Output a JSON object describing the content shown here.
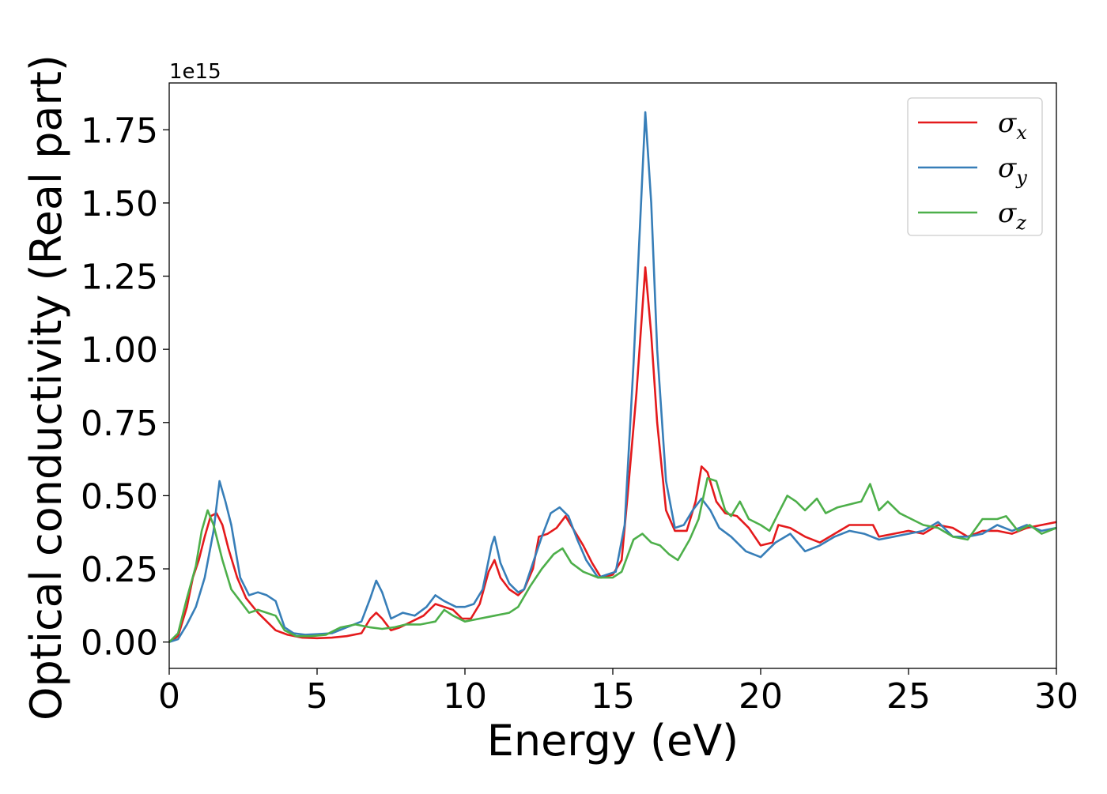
{
  "chart_data": {
    "type": "line",
    "title": "",
    "xlabel": "Energy (eV)",
    "ylabel": "Optical conductivity (Real part)",
    "offset_label": "1e15",
    "xlim": [
      0,
      30
    ],
    "ylim": [
      -0.09,
      1.91
    ],
    "x_ticks": [
      0,
      5,
      10,
      15,
      20,
      25,
      30
    ],
    "x_tick_labels": [
      "0",
      "5",
      "10",
      "15",
      "20",
      "25",
      "30"
    ],
    "y_ticks": [
      0.0,
      0.25,
      0.5,
      0.75,
      1.0,
      1.25,
      1.5,
      1.75
    ],
    "y_tick_labels": [
      "0.00",
      "0.25",
      "0.50",
      "0.75",
      "1.00",
      "1.25",
      "1.50",
      "1.75"
    ],
    "grid": false,
    "legend_position": "upper right",
    "series": [
      {
        "name": "σ_x",
        "color": "#e41a1c",
        "points": [
          [
            0,
            0
          ],
          [
            0.3,
            0.02
          ],
          [
            0.6,
            0.12
          ],
          [
            0.8,
            0.22
          ],
          [
            1.0,
            0.28
          ],
          [
            1.2,
            0.36
          ],
          [
            1.4,
            0.43
          ],
          [
            1.6,
            0.44
          ],
          [
            1.8,
            0.4
          ],
          [
            2.0,
            0.32
          ],
          [
            2.3,
            0.22
          ],
          [
            2.6,
            0.15
          ],
          [
            3.0,
            0.1
          ],
          [
            3.3,
            0.07
          ],
          [
            3.6,
            0.04
          ],
          [
            4.0,
            0.025
          ],
          [
            4.5,
            0.015
          ],
          [
            5.0,
            0.013
          ],
          [
            5.5,
            0.015
          ],
          [
            6.0,
            0.02
          ],
          [
            6.5,
            0.03
          ],
          [
            6.8,
            0.08
          ],
          [
            7.0,
            0.1
          ],
          [
            7.2,
            0.08
          ],
          [
            7.5,
            0.04
          ],
          [
            7.8,
            0.05
          ],
          [
            8.2,
            0.07
          ],
          [
            8.6,
            0.09
          ],
          [
            9.0,
            0.13
          ],
          [
            9.3,
            0.12
          ],
          [
            9.6,
            0.11
          ],
          [
            9.9,
            0.08
          ],
          [
            10.2,
            0.08
          ],
          [
            10.5,
            0.13
          ],
          [
            10.8,
            0.24
          ],
          [
            11.0,
            0.28
          ],
          [
            11.2,
            0.22
          ],
          [
            11.5,
            0.18
          ],
          [
            11.8,
            0.16
          ],
          [
            12.0,
            0.18
          ],
          [
            12.3,
            0.25
          ],
          [
            12.5,
            0.36
          ],
          [
            12.8,
            0.37
          ],
          [
            13.1,
            0.39
          ],
          [
            13.4,
            0.43
          ],
          [
            13.7,
            0.38
          ],
          [
            14.0,
            0.33
          ],
          [
            14.3,
            0.27
          ],
          [
            14.6,
            0.22
          ],
          [
            15.0,
            0.23
          ],
          [
            15.3,
            0.28
          ],
          [
            15.5,
            0.5
          ],
          [
            15.8,
            0.85
          ],
          [
            16.1,
            1.28
          ],
          [
            16.3,
            1.05
          ],
          [
            16.5,
            0.75
          ],
          [
            16.8,
            0.45
          ],
          [
            17.1,
            0.38
          ],
          [
            17.5,
            0.38
          ],
          [
            17.8,
            0.48
          ],
          [
            18.0,
            0.6
          ],
          [
            18.2,
            0.58
          ],
          [
            18.5,
            0.48
          ],
          [
            18.8,
            0.44
          ],
          [
            19.2,
            0.43
          ],
          [
            19.6,
            0.39
          ],
          [
            20.0,
            0.33
          ],
          [
            20.4,
            0.34
          ],
          [
            20.6,
            0.4
          ],
          [
            21.0,
            0.39
          ],
          [
            21.5,
            0.36
          ],
          [
            22.0,
            0.34
          ],
          [
            22.5,
            0.37
          ],
          [
            23.0,
            0.4
          ],
          [
            23.5,
            0.4
          ],
          [
            23.8,
            0.4
          ],
          [
            24.0,
            0.36
          ],
          [
            24.5,
            0.37
          ],
          [
            25.0,
            0.38
          ],
          [
            25.5,
            0.37
          ],
          [
            26.0,
            0.4
          ],
          [
            26.5,
            0.39
          ],
          [
            27.0,
            0.36
          ],
          [
            27.5,
            0.38
          ],
          [
            28.0,
            0.38
          ],
          [
            28.5,
            0.37
          ],
          [
            29.0,
            0.39
          ],
          [
            29.5,
            0.4
          ],
          [
            30.0,
            0.41
          ]
        ]
      },
      {
        "name": "σ_y",
        "color": "#377eb8",
        "points": [
          [
            0,
            0
          ],
          [
            0.3,
            0.01
          ],
          [
            0.6,
            0.06
          ],
          [
            0.9,
            0.12
          ],
          [
            1.2,
            0.22
          ],
          [
            1.5,
            0.38
          ],
          [
            1.7,
            0.55
          ],
          [
            1.9,
            0.48
          ],
          [
            2.1,
            0.4
          ],
          [
            2.4,
            0.22
          ],
          [
            2.7,
            0.16
          ],
          [
            3.0,
            0.17
          ],
          [
            3.3,
            0.16
          ],
          [
            3.6,
            0.14
          ],
          [
            3.9,
            0.05
          ],
          [
            4.2,
            0.03
          ],
          [
            4.6,
            0.025
          ],
          [
            5.0,
            0.027
          ],
          [
            5.5,
            0.03
          ],
          [
            6.0,
            0.05
          ],
          [
            6.5,
            0.07
          ],
          [
            6.8,
            0.15
          ],
          [
            7.0,
            0.21
          ],
          [
            7.2,
            0.17
          ],
          [
            7.5,
            0.08
          ],
          [
            7.9,
            0.1
          ],
          [
            8.3,
            0.09
          ],
          [
            8.7,
            0.12
          ],
          [
            9.0,
            0.16
          ],
          [
            9.3,
            0.14
          ],
          [
            9.7,
            0.12
          ],
          [
            10.0,
            0.12
          ],
          [
            10.3,
            0.13
          ],
          [
            10.6,
            0.18
          ],
          [
            10.9,
            0.33
          ],
          [
            11.0,
            0.36
          ],
          [
            11.2,
            0.27
          ],
          [
            11.5,
            0.2
          ],
          [
            11.8,
            0.17
          ],
          [
            12.0,
            0.18
          ],
          [
            12.3,
            0.27
          ],
          [
            12.6,
            0.36
          ],
          [
            12.9,
            0.44
          ],
          [
            13.2,
            0.46
          ],
          [
            13.5,
            0.43
          ],
          [
            13.8,
            0.35
          ],
          [
            14.1,
            0.28
          ],
          [
            14.5,
            0.22
          ],
          [
            14.8,
            0.23
          ],
          [
            15.1,
            0.24
          ],
          [
            15.4,
            0.4
          ],
          [
            15.7,
            0.95
          ],
          [
            16.1,
            1.81
          ],
          [
            16.3,
            1.5
          ],
          [
            16.5,
            1.0
          ],
          [
            16.8,
            0.55
          ],
          [
            17.1,
            0.39
          ],
          [
            17.4,
            0.4
          ],
          [
            17.7,
            0.45
          ],
          [
            18.0,
            0.49
          ],
          [
            18.3,
            0.45
          ],
          [
            18.6,
            0.39
          ],
          [
            19.0,
            0.36
          ],
          [
            19.5,
            0.31
          ],
          [
            20.0,
            0.29
          ],
          [
            20.5,
            0.34
          ],
          [
            21.0,
            0.37
          ],
          [
            21.5,
            0.31
          ],
          [
            22.0,
            0.33
          ],
          [
            22.5,
            0.36
          ],
          [
            23.0,
            0.38
          ],
          [
            23.5,
            0.37
          ],
          [
            24.0,
            0.35
          ],
          [
            24.5,
            0.36
          ],
          [
            25.0,
            0.37
          ],
          [
            25.5,
            0.38
          ],
          [
            26.0,
            0.41
          ],
          [
            26.5,
            0.36
          ],
          [
            27.0,
            0.36
          ],
          [
            27.5,
            0.37
          ],
          [
            28.0,
            0.4
          ],
          [
            28.5,
            0.38
          ],
          [
            29.0,
            0.4
          ],
          [
            29.5,
            0.38
          ],
          [
            30.0,
            0.39
          ]
        ]
      },
      {
        "name": "σ_z",
        "color": "#4daf4a",
        "points": [
          [
            0,
            0
          ],
          [
            0.3,
            0.03
          ],
          [
            0.6,
            0.15
          ],
          [
            0.9,
            0.26
          ],
          [
            1.1,
            0.38
          ],
          [
            1.3,
            0.45
          ],
          [
            1.5,
            0.4
          ],
          [
            1.8,
            0.28
          ],
          [
            2.1,
            0.18
          ],
          [
            2.4,
            0.14
          ],
          [
            2.7,
            0.1
          ],
          [
            3.0,
            0.11
          ],
          [
            3.3,
            0.1
          ],
          [
            3.6,
            0.09
          ],
          [
            3.9,
            0.04
          ],
          [
            4.3,
            0.02
          ],
          [
            4.8,
            0.02
          ],
          [
            5.3,
            0.025
          ],
          [
            5.8,
            0.05
          ],
          [
            6.3,
            0.06
          ],
          [
            6.8,
            0.05
          ],
          [
            7.2,
            0.045
          ],
          [
            7.6,
            0.05
          ],
          [
            8.0,
            0.06
          ],
          [
            8.5,
            0.06
          ],
          [
            9.0,
            0.07
          ],
          [
            9.3,
            0.11
          ],
          [
            9.6,
            0.09
          ],
          [
            10.0,
            0.07
          ],
          [
            10.5,
            0.08
          ],
          [
            11.0,
            0.09
          ],
          [
            11.5,
            0.1
          ],
          [
            11.8,
            0.12
          ],
          [
            12.2,
            0.19
          ],
          [
            12.6,
            0.25
          ],
          [
            13.0,
            0.3
          ],
          [
            13.3,
            0.32
          ],
          [
            13.6,
            0.27
          ],
          [
            14.0,
            0.24
          ],
          [
            14.5,
            0.22
          ],
          [
            15.0,
            0.22
          ],
          [
            15.3,
            0.24
          ],
          [
            15.7,
            0.35
          ],
          [
            16.0,
            0.37
          ],
          [
            16.3,
            0.34
          ],
          [
            16.6,
            0.33
          ],
          [
            16.9,
            0.3
          ],
          [
            17.2,
            0.28
          ],
          [
            17.6,
            0.35
          ],
          [
            17.9,
            0.42
          ],
          [
            18.2,
            0.56
          ],
          [
            18.5,
            0.55
          ],
          [
            18.8,
            0.45
          ],
          [
            19.0,
            0.43
          ],
          [
            19.3,
            0.48
          ],
          [
            19.6,
            0.42
          ],
          [
            20.0,
            0.4
          ],
          [
            20.3,
            0.38
          ],
          [
            20.6,
            0.44
          ],
          [
            20.9,
            0.5
          ],
          [
            21.2,
            0.48
          ],
          [
            21.5,
            0.45
          ],
          [
            21.9,
            0.49
          ],
          [
            22.2,
            0.44
          ],
          [
            22.6,
            0.46
          ],
          [
            23.0,
            0.47
          ],
          [
            23.4,
            0.48
          ],
          [
            23.7,
            0.54
          ],
          [
            24.0,
            0.45
          ],
          [
            24.3,
            0.48
          ],
          [
            24.7,
            0.44
          ],
          [
            25.1,
            0.42
          ],
          [
            25.5,
            0.4
          ],
          [
            26.0,
            0.39
          ],
          [
            26.5,
            0.36
          ],
          [
            27.0,
            0.35
          ],
          [
            27.5,
            0.42
          ],
          [
            28.0,
            0.42
          ],
          [
            28.3,
            0.43
          ],
          [
            28.7,
            0.38
          ],
          [
            29.1,
            0.4
          ],
          [
            29.5,
            0.37
          ],
          [
            30.0,
            0.39
          ]
        ]
      }
    ]
  }
}
